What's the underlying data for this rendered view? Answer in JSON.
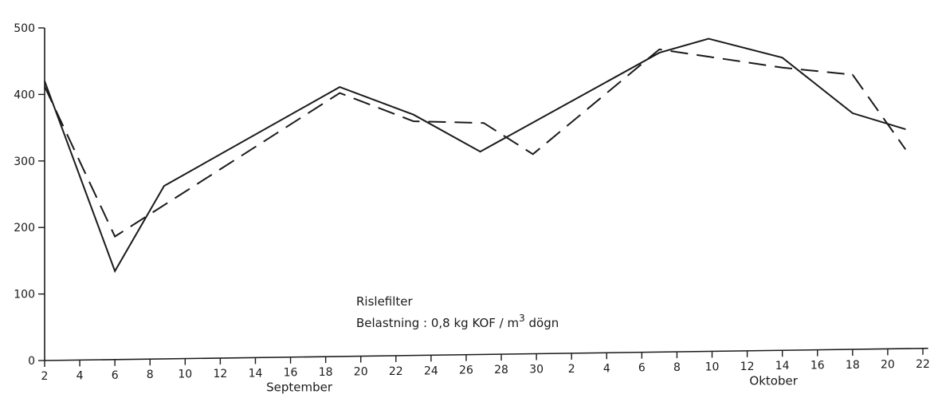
{
  "chart_data": {
    "type": "line",
    "title": "",
    "xlabel": "",
    "ylabel": "",
    "ylim": [
      0,
      500
    ],
    "y_ticks": [
      0,
      100,
      200,
      300,
      400,
      500
    ],
    "x_ticks": [
      {
        "day": 0,
        "label": "2"
      },
      {
        "day": 2,
        "label": "4"
      },
      {
        "day": 4,
        "label": "6"
      },
      {
        "day": 6,
        "label": "8"
      },
      {
        "day": 8,
        "label": "10"
      },
      {
        "day": 10,
        "label": "12"
      },
      {
        "day": 12,
        "label": "14"
      },
      {
        "day": 14,
        "label": "16"
      },
      {
        "day": 16,
        "label": "18"
      },
      {
        "day": 18,
        "label": "20"
      },
      {
        "day": 20,
        "label": "22"
      },
      {
        "day": 22,
        "label": "24"
      },
      {
        "day": 24,
        "label": "26"
      },
      {
        "day": 26,
        "label": "28"
      },
      {
        "day": 28,
        "label": "30"
      },
      {
        "day": 30,
        "label": "2"
      },
      {
        "day": 32,
        "label": "4"
      },
      {
        "day": 34,
        "label": "6"
      },
      {
        "day": 36,
        "label": "8"
      },
      {
        "day": 38,
        "label": "10"
      },
      {
        "day": 40,
        "label": "12"
      },
      {
        "day": 42,
        "label": "14"
      },
      {
        "day": 44,
        "label": "16"
      },
      {
        "day": 46,
        "label": "18"
      },
      {
        "day": 48,
        "label": "20"
      },
      {
        "day": 50,
        "label": "22"
      }
    ],
    "month_labels": [
      {
        "day": 14.5,
        "label": "September"
      },
      {
        "day": 41.5,
        "label": "Oktober"
      }
    ],
    "annotation": {
      "line1": "Rislefilter",
      "line2_prefix": "Belastning : 0,8 kg KOF / m",
      "line2_sup": "3",
      "line2_suffix": " dögn"
    },
    "series": [
      {
        "style": "solid",
        "points": [
          {
            "day": 0,
            "y": 420
          },
          {
            "day": 4,
            "y": 133
          },
          {
            "day": 6.8,
            "y": 260
          },
          {
            "day": 16.8,
            "y": 405
          },
          {
            "day": 21,
            "y": 362
          },
          {
            "day": 24.8,
            "y": 305
          },
          {
            "day": 35,
            "y": 450
          },
          {
            "day": 37.8,
            "y": 470
          },
          {
            "day": 42,
            "y": 440
          },
          {
            "day": 46,
            "y": 355
          },
          {
            "day": 49,
            "y": 330
          }
        ]
      },
      {
        "style": "dashed",
        "points": [
          {
            "day": 0,
            "y": 412
          },
          {
            "day": 4,
            "y": 185
          },
          {
            "day": 16.8,
            "y": 396
          },
          {
            "day": 21,
            "y": 352
          },
          {
            "day": 25,
            "y": 348
          },
          {
            "day": 27.8,
            "y": 300
          },
          {
            "day": 35,
            "y": 455
          },
          {
            "day": 42,
            "y": 425
          },
          {
            "day": 46,
            "y": 413
          },
          {
            "day": 49,
            "y": 300
          }
        ]
      }
    ]
  }
}
